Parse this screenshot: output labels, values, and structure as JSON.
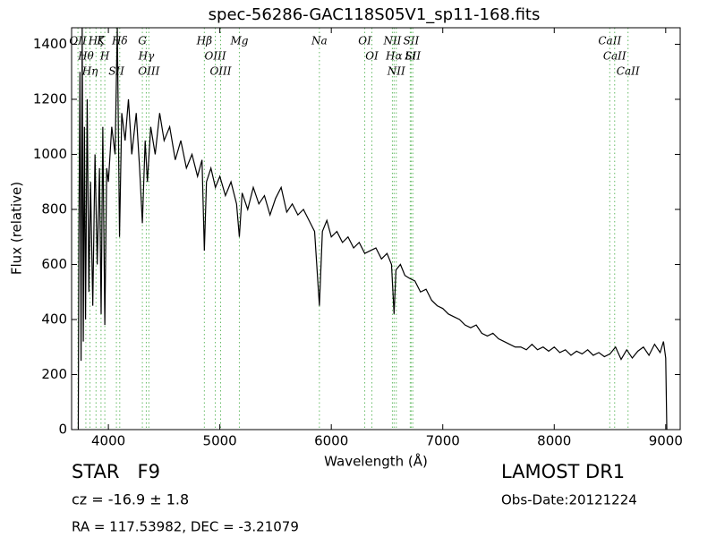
{
  "chart_data": {
    "type": "line",
    "title": "spec-56286-GAC118S05V1_sp11-168.fits",
    "x_label": "Wavelength (Å)",
    "y_label": "Flux (relative)",
    "xlim": [
      3670,
      9130
    ],
    "ylim": [
      0,
      1460
    ],
    "xticks": [
      4000,
      5000,
      6000,
      7000,
      8000,
      9000
    ],
    "yticks": [
      0,
      200,
      400,
      600,
      800,
      1000,
      1200,
      1400
    ],
    "x": [
      3730,
      3735,
      3745,
      3755,
      3765,
      3775,
      3785,
      3795,
      3810,
      3825,
      3840,
      3860,
      3880,
      3900,
      3920,
      3935,
      3950,
      3968,
      3985,
      4000,
      4030,
      4060,
      4080,
      4100,
      4120,
      4150,
      4180,
      4210,
      4250,
      4280,
      4305,
      4330,
      4350,
      4380,
      4420,
      4460,
      4500,
      4550,
      4600,
      4650,
      4700,
      4750,
      4800,
      4840,
      4861,
      4880,
      4920,
      4960,
      5000,
      5050,
      5100,
      5150,
      5175,
      5200,
      5250,
      5300,
      5350,
      5400,
      5450,
      5500,
      5550,
      5600,
      5650,
      5700,
      5750,
      5800,
      5850,
      5893,
      5920,
      5960,
      6000,
      6050,
      6100,
      6150,
      6200,
      6250,
      6300,
      6350,
      6400,
      6450,
      6500,
      6540,
      6563,
      6580,
      6620,
      6660,
      6700,
      6750,
      6800,
      6850,
      6900,
      6950,
      7000,
      7050,
      7100,
      7150,
      7200,
      7250,
      7300,
      7350,
      7400,
      7450,
      7500,
      7550,
      7600,
      7650,
      7700,
      7750,
      7800,
      7850,
      7900,
      7950,
      8000,
      8050,
      8100,
      8150,
      8200,
      8250,
      8300,
      8350,
      8400,
      8450,
      8500,
      8550,
      8600,
      8650,
      8700,
      8750,
      8800,
      8850,
      8900,
      8950,
      8980,
      9000,
      9010
    ],
    "series": [
      {
        "name": "flux",
        "color": "#000000",
        "values": [
          0,
          700,
          1300,
          250,
          1460,
          320,
          1100,
          400,
          1200,
          500,
          900,
          450,
          1000,
          600,
          950,
          420,
          1100,
          380,
          950,
          900,
          1100,
          1000,
          1460,
          700,
          1150,
          1050,
          1200,
          1000,
          1150,
          950,
          750,
          1050,
          900,
          1100,
          1000,
          1150,
          1050,
          1100,
          980,
          1050,
          950,
          1000,
          920,
          980,
          650,
          900,
          950,
          880,
          920,
          850,
          900,
          820,
          700,
          860,
          800,
          880,
          820,
          850,
          780,
          840,
          880,
          790,
          820,
          780,
          800,
          760,
          720,
          450,
          720,
          760,
          700,
          720,
          680,
          700,
          660,
          680,
          640,
          650,
          660,
          620,
          640,
          600,
          420,
          580,
          600,
          560,
          550,
          540,
          500,
          510,
          470,
          450,
          440,
          420,
          410,
          400,
          380,
          370,
          380,
          350,
          340,
          350,
          330,
          320,
          310,
          300,
          300,
          290,
          310,
          290,
          300,
          285,
          300,
          280,
          290,
          270,
          285,
          275,
          290,
          270,
          280,
          265,
          275,
          300,
          255,
          290,
          260,
          285,
          300,
          270,
          310,
          280,
          320,
          260,
          0
        ]
      }
    ],
    "line_color": "#66bb66",
    "lines": [
      {
        "label": "OII",
        "wavelength": 3727
      },
      {
        "label": "Hθ",
        "wavelength": 3798
      },
      {
        "label": "Hη",
        "wavelength": 3835
      },
      {
        "label": "Hζ",
        "wavelength": 3889
      },
      {
        "label": "K",
        "wavelength": 3934
      },
      {
        "label": "H",
        "wavelength": 3968
      },
      {
        "label": "SII",
        "wavelength": 4072
      },
      {
        "label": "Hδ",
        "wavelength": 4102
      },
      {
        "label": "G",
        "wavelength": 4305
      },
      {
        "label": "Hγ",
        "wavelength": 4340
      },
      {
        "label": "OIII",
        "wavelength": 4363
      },
      {
        "label": "Hβ",
        "wavelength": 4861
      },
      {
        "label": "OIII",
        "wavelength": 4959
      },
      {
        "label": "OIII",
        "wavelength": 5007
      },
      {
        "label": "Mg",
        "wavelength": 5175
      },
      {
        "label": "Na",
        "wavelength": 5893
      },
      {
        "label": "OI",
        "wavelength": 6300
      },
      {
        "label": "OI",
        "wavelength": 6364
      },
      {
        "label": "NII",
        "wavelength": 6548
      },
      {
        "label": "Hα",
        "wavelength": 6563
      },
      {
        "label": "NII",
        "wavelength": 6583
      },
      {
        "label": "Li",
        "wavelength": 6708
      },
      {
        "label": "SII",
        "wavelength": 6716
      },
      {
        "label": "SII",
        "wavelength": 6731
      },
      {
        "label": "CaII",
        "wavelength": 8498
      },
      {
        "label": "CaII",
        "wavelength": 8542
      },
      {
        "label": "CaII",
        "wavelength": 8662
      }
    ],
    "info": {
      "class": "STAR   F9",
      "survey": "LAMOST DR1",
      "redshift": "cz = -16.9 ± 1.8",
      "date": "Obs-Date:20121224",
      "coords": "RA = 117.53982, DEC = -3.21079"
    }
  }
}
